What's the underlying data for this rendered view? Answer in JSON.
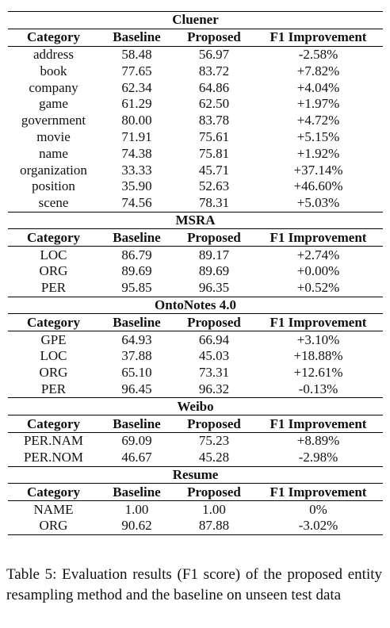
{
  "table": {
    "sections": [
      {
        "name": "Cluener",
        "header": [
          "Category",
          "Baseline",
          "Proposed",
          "F1 Improvement"
        ],
        "rows": [
          [
            "address",
            "58.48",
            "56.97",
            "-2.58%"
          ],
          [
            "book",
            "77.65",
            "83.72",
            "+7.82%"
          ],
          [
            "company",
            "62.34",
            "64.86",
            "+4.04%"
          ],
          [
            "game",
            "61.29",
            "62.50",
            "+1.97%"
          ],
          [
            "government",
            "80.00",
            "83.78",
            "+4.72%"
          ],
          [
            "movie",
            "71.91",
            "75.61",
            "+5.15%"
          ],
          [
            "name",
            "74.38",
            "75.81",
            "+1.92%"
          ],
          [
            "organization",
            "33.33",
            "45.71",
            "+37.14%"
          ],
          [
            "position",
            "35.90",
            "52.63",
            "+46.60%"
          ],
          [
            "scene",
            "74.56",
            "78.31",
            "+5.03%"
          ]
        ]
      },
      {
        "name": "MSRA",
        "header": [
          "Category",
          "Baseline",
          "Proposed",
          "F1 Improvement"
        ],
        "rows": [
          [
            "LOC",
            "86.79",
            "89.17",
            "+2.74%"
          ],
          [
            "ORG",
            "89.69",
            "89.69",
            "+0.00%"
          ],
          [
            "PER",
            "95.85",
            "96.35",
            "+0.52%"
          ]
        ]
      },
      {
        "name": "OntoNotes 4.0",
        "header": [
          "Category",
          "Baseline",
          "Proposed",
          "F1 Improvement"
        ],
        "rows": [
          [
            "GPE",
            "64.93",
            "66.94",
            "+3.10%"
          ],
          [
            "LOC",
            "37.88",
            "45.03",
            "+18.88%"
          ],
          [
            "ORG",
            "65.10",
            "73.31",
            "+12.61%"
          ],
          [
            "PER",
            "96.45",
            "96.32",
            "-0.13%"
          ]
        ]
      },
      {
        "name": "Weibo",
        "header": [
          "Category",
          "Baseline",
          "Proposed",
          "F1 Improvement"
        ],
        "rows": [
          [
            "PER.NAM",
            "69.09",
            "75.23",
            "+8.89%"
          ],
          [
            "PER.NOM",
            "46.67",
            "45.28",
            "-2.98%"
          ]
        ]
      },
      {
        "name": "Resume",
        "header": [
          "Category",
          "Baseline",
          "Proposed",
          "F1 Improvement"
        ],
        "rows": [
          [
            "NAME",
            "1.00",
            "1.00",
            "0%"
          ],
          [
            "ORG",
            "90.62",
            "87.88",
            "-3.02%"
          ]
        ]
      }
    ]
  },
  "caption": "Table 5:  Evaluation results (F1 score) of the proposed entity resampling method and the baseline on unseen test data"
}
